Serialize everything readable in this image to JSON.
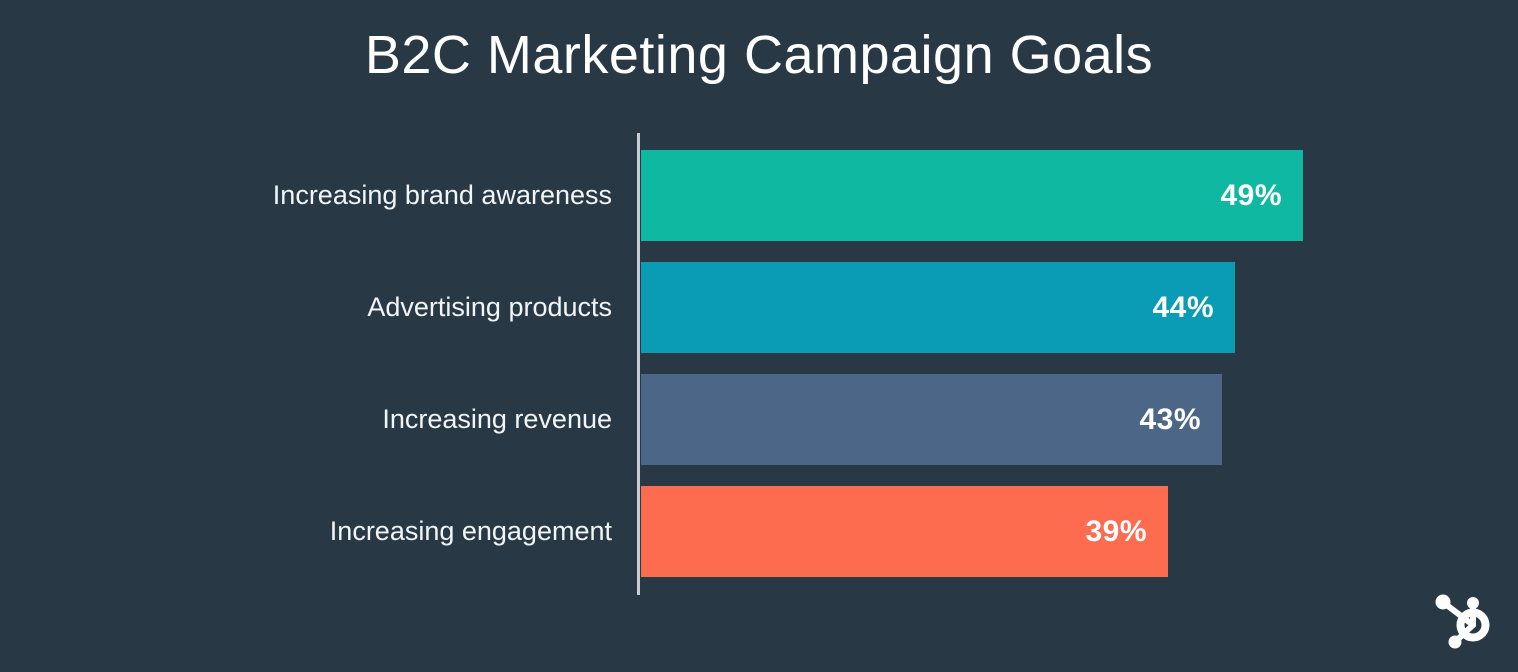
{
  "title": "B2C Marketing Campaign Goals",
  "chart_data": {
    "type": "bar",
    "orientation": "horizontal",
    "title": "B2C Marketing Campaign Goals",
    "categories": [
      "Increasing brand awareness",
      "Advertising products",
      "Increasing revenue",
      "Increasing engagement"
    ],
    "values": [
      49,
      44,
      43,
      39
    ],
    "value_labels": [
      "49%",
      "44%",
      "43%",
      "39%"
    ],
    "bar_colors": [
      "#0fb8a1",
      "#0a9bb5",
      "#4c6687",
      "#fd6c4f"
    ],
    "xlim": [
      0,
      50
    ],
    "grid": false,
    "legend": false,
    "value_label_position": "inside-end",
    "axis_line_color": "#c6cdd7"
  },
  "colors": {
    "background": "#293845",
    "title_text": "#ffffff",
    "category_text": "#f2f5f7",
    "value_text": "#ffffff"
  },
  "branding": {
    "logo_icon": "hubspot-sprocket-icon",
    "logo_color": "#ffffff"
  }
}
